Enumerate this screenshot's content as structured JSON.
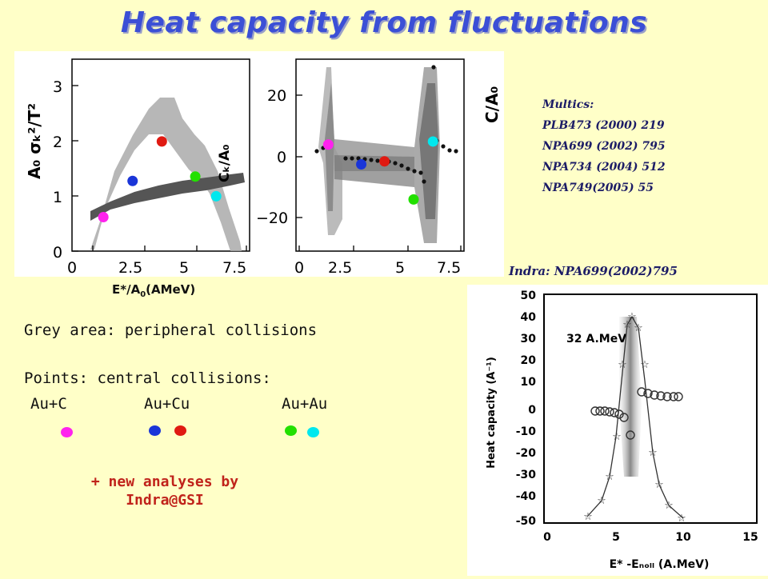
{
  "title": "Heat capacity from fluctuations",
  "references": {
    "multics_header": "Multics:",
    "multics": [
      "PLB473 (2000) 219",
      "NPA699 (2002) 795",
      "NPA734 (2004) 512",
      "NPA749(2005)  55"
    ],
    "indra": "Indra: NPA699(2002)795"
  },
  "left_plot": {
    "ylabel": "A₀ σₖ²/T²",
    "ymin": 0,
    "ymax": 3.5,
    "yticks": [
      "0",
      "1",
      "2",
      "3"
    ],
    "xmin": 0,
    "xmax": 8.5,
    "xticks": [
      "0",
      "2.5",
      "5",
      "7.5"
    ],
    "curve_label": "Cₖ/A₀",
    "points": [
      {
        "x": 1.5,
        "y": 0.62,
        "color": "#ff22ee"
      },
      {
        "x": 2.9,
        "y": 1.28,
        "color": "#1a35d8"
      },
      {
        "x": 4.3,
        "y": 2.0,
        "color": "#e01a12"
      },
      {
        "x": 5.9,
        "y": 1.36,
        "color": "#22e000"
      },
      {
        "x": 6.9,
        "y": 1.0,
        "color": "#00e8ee"
      }
    ]
  },
  "right_plot": {
    "ylabel": "C/A₀",
    "ymin": -32,
    "ymax": 32,
    "yticks": [
      "20",
      "0",
      "−20"
    ],
    "xmin": 0,
    "xmax": 8.5,
    "xticks": [
      "0",
      "2.5",
      "5",
      "7.5"
    ],
    "points": [
      {
        "x": 1.5,
        "y": 4.0,
        "color": "#ff22ee"
      },
      {
        "x": 3.2,
        "y": -2.5,
        "color": "#1a35d8"
      },
      {
        "x": 4.4,
        "y": -1.5,
        "color": "#e01a12"
      },
      {
        "x": 5.9,
        "y": -14.0,
        "color": "#22e000"
      },
      {
        "x": 6.9,
        "y": 5.0,
        "color": "#00e8ee"
      }
    ]
  },
  "xlabel_left": "E*/A",
  "xlabel_sub": "0",
  "xlabel_unit": "(AMeV)",
  "legend": {
    "grey": "Grey area: peripheral collisions",
    "points": "Points: central collisions:",
    "systems": [
      "Au+C",
      "Au+Cu",
      "Au+Au"
    ],
    "note_line1": "+ new analyses by",
    "note_line2": "Indra@GSI"
  },
  "indra_plot": {
    "energy": "32 A.MeV",
    "ylabel": "Heat capacity (A⁻¹)",
    "yticks": [
      "50",
      "40",
      "30",
      "20",
      "10",
      "0",
      "-10",
      "-20",
      "-30",
      "-40",
      "-50"
    ],
    "xticks": [
      "0",
      "5",
      "10",
      "15"
    ],
    "xlabel": "E* -Eₙₒₗₗ (A.MeV)"
  }
}
